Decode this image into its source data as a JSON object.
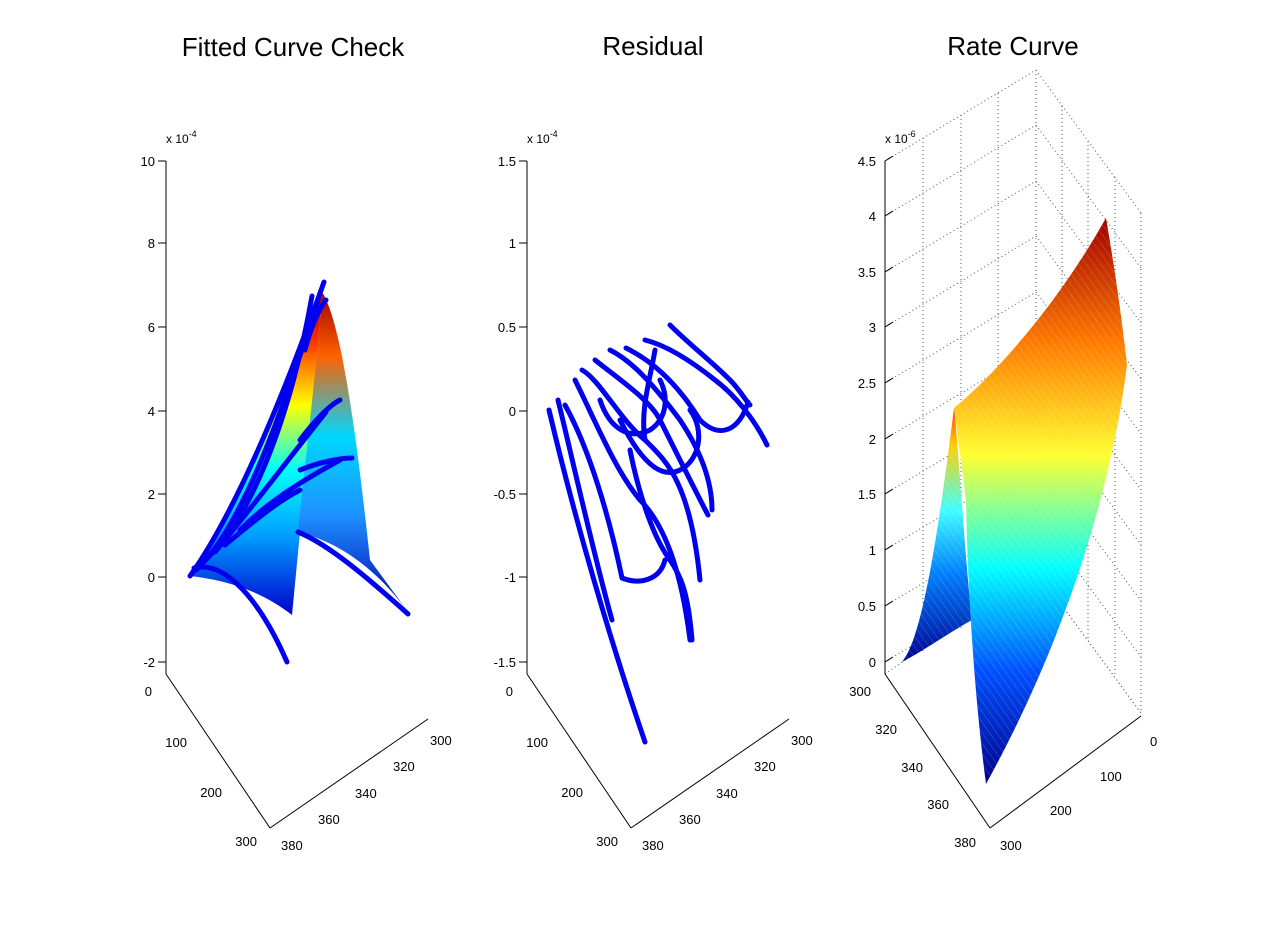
{
  "figure": {
    "panels": [
      {
        "id": "fitted-curve-check",
        "title": "Fitted Curve Check",
        "z_multiplier": {
          "base": "x 10",
          "exponent": "-4"
        },
        "z_ticks": [
          "10",
          "8",
          "6",
          "4",
          "2",
          "0",
          "-2"
        ],
        "x_ticks": [
          "0",
          "100",
          "200",
          "300"
        ],
        "y_ticks": [
          "300",
          "320",
          "340",
          "360",
          "380"
        ]
      },
      {
        "id": "residual",
        "title": "Residual",
        "z_multiplier": {
          "base": "x 10",
          "exponent": "-4"
        },
        "z_ticks": [
          "1.5",
          "1",
          "0.5",
          "0",
          "-0.5",
          "-1",
          "-1.5"
        ],
        "x_ticks": [
          "0",
          "100",
          "200",
          "300"
        ],
        "y_ticks": [
          "300",
          "320",
          "340",
          "360",
          "380"
        ]
      },
      {
        "id": "rate-curve",
        "title": "Rate Curve",
        "z_multiplier": {
          "base": "x 10",
          "exponent": "-6"
        },
        "z_ticks": [
          "4.5",
          "4",
          "3.5",
          "3",
          "2.5",
          "2",
          "1.5",
          "1",
          "0.5",
          "0"
        ],
        "x_ticks": [
          "0",
          "100",
          "200",
          "300"
        ],
        "y_ticks": [
          "300",
          "320",
          "340",
          "360",
          "380"
        ]
      }
    ]
  },
  "chart_data": [
    {
      "type": "surface",
      "title": "Fitted Curve Check",
      "xlim": [
        0,
        300
      ],
      "ylim": [
        300,
        380
      ],
      "zlim": [
        -2,
        10
      ],
      "z_scale": "x 10^-4",
      "series": [
        {
          "kind": "surface",
          "colormap": "jet",
          "peak_z": 6.8
        },
        {
          "kind": "scatter",
          "color": "#0000ff",
          "peak_z": 7.2
        }
      ],
      "colors": {
        "markers": "#0000ff",
        "colormap": [
          "#00008f",
          "#0000ff",
          "#00ffff",
          "#ffff00",
          "#ff0000",
          "#800000"
        ]
      }
    },
    {
      "type": "scatter",
      "title": "Residual",
      "xlim": [
        0,
        300
      ],
      "ylim": [
        300,
        380
      ],
      "zlim": [
        -1.5,
        1.5
      ],
      "z_scale": "x 10^-4",
      "series": [
        {
          "kind": "scatter",
          "color": "#0000ff",
          "z_range": [
            -1.9,
            0.5
          ]
        }
      ]
    },
    {
      "type": "surface",
      "title": "Rate Curve",
      "xlim": [
        0,
        300
      ],
      "ylim": [
        300,
        380
      ],
      "zlim": [
        0,
        4.5
      ],
      "z_scale": "x 10^-6",
      "grid": true,
      "series": [
        {
          "kind": "surface",
          "colormap": "jet",
          "peak_z": 4.0
        }
      ]
    }
  ]
}
